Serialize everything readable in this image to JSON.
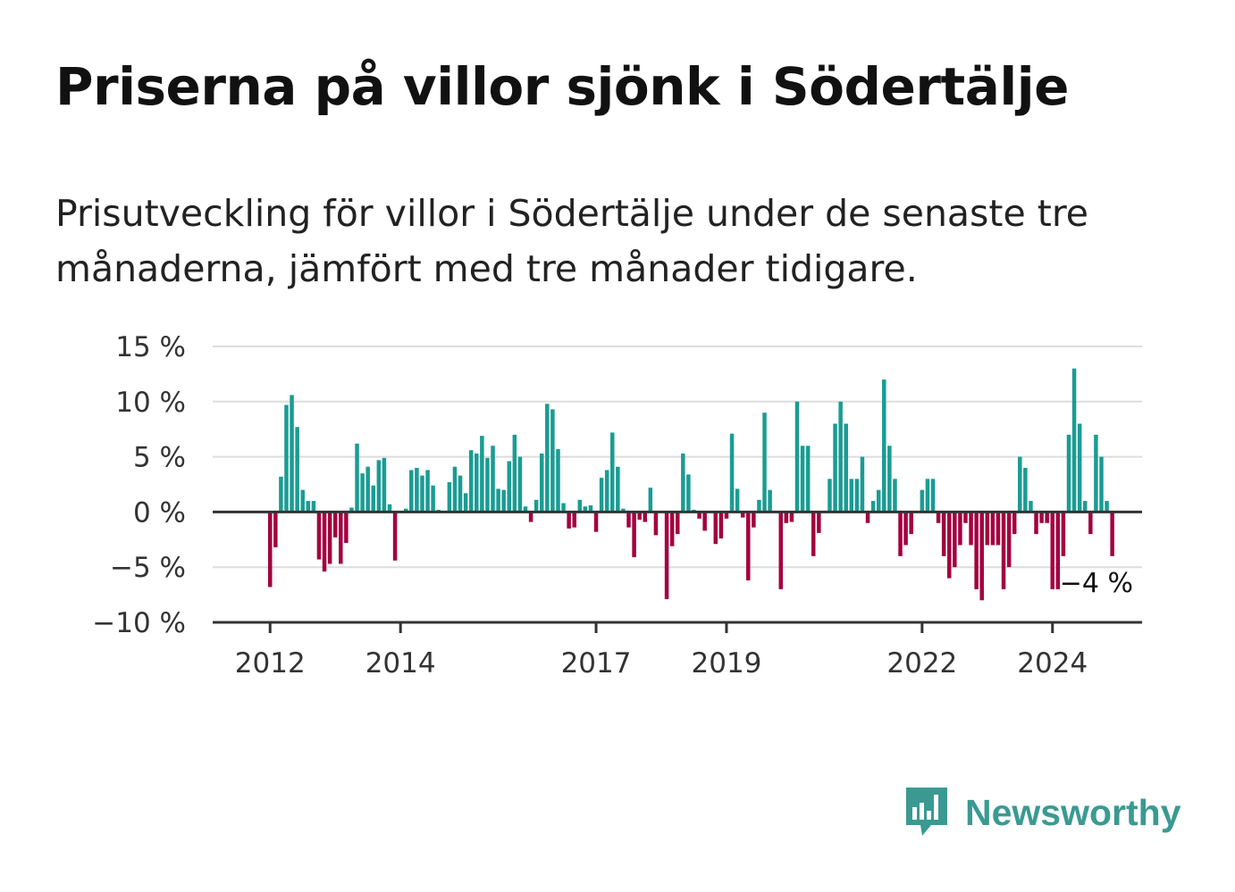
{
  "title": "Priserna på villor sjönk i Södertälje",
  "subtitle": "Prisutveckling för villor i Södertälje under de senaste tre månaderna, jämfört med tre månader tidigare.",
  "brand": {
    "name": "Newsworthy",
    "icon": "newsworthy-logo-icon"
  },
  "colors": {
    "positive": "#1a9c93",
    "negative": "#a3003f",
    "grid": "#dddddd",
    "axis": "#333333",
    "brand": "#3a9a92"
  },
  "chart_data": {
    "type": "bar",
    "title": "",
    "xlabel": "",
    "ylabel": "",
    "ylim": [
      -10,
      15
    ],
    "y_ticks": [
      {
        "value": 15,
        "label": "15 %"
      },
      {
        "value": 10,
        "label": "10 %"
      },
      {
        "value": 5,
        "label": "5 %"
      },
      {
        "value": 0,
        "label": "0 %"
      },
      {
        "value": -5,
        "label": "−5 %"
      },
      {
        "value": -10,
        "label": "−10 %"
      }
    ],
    "x_ticks": [
      {
        "value": "2012-01",
        "label": "2012"
      },
      {
        "value": "2014-01",
        "label": "2014"
      },
      {
        "value": "2017-01",
        "label": "2017"
      },
      {
        "value": "2019-01",
        "label": "2019"
      },
      {
        "value": "2022-01",
        "label": "2022"
      },
      {
        "value": "2024-01",
        "label": "2024"
      }
    ],
    "start_month": "2011-10",
    "last_value_label": "−4 %",
    "grid": true,
    "legend": "none",
    "values": [
      0,
      0,
      0,
      -6.8,
      -3.2,
      3.2,
      9.7,
      10.6,
      7.7,
      2.0,
      1.0,
      1.0,
      -4.3,
      -5.4,
      -4.7,
      -2.3,
      -4.7,
      -2.8,
      0.4,
      6.2,
      3.5,
      4.1,
      2.4,
      4.7,
      4.9,
      0.7,
      -4.4,
      0,
      0.3,
      3.8,
      4.0,
      3.3,
      3.8,
      2.4,
      0.2,
      0,
      2.7,
      4.1,
      3.3,
      1.7,
      5.6,
      5.3,
      6.9,
      4.9,
      6.0,
      2.1,
      2.0,
      4.6,
      7.0,
      5.0,
      0.5,
      -0.9,
      1.1,
      5.3,
      9.8,
      9.3,
      5.7,
      0.8,
      -1.5,
      -1.4,
      1.1,
      0.5,
      0.6,
      -1.8,
      3.1,
      3.8,
      7.2,
      4.1,
      0.3,
      -1.4,
      -4.1,
      -0.7,
      -0.9,
      2.2,
      -2.1,
      0,
      -7.9,
      -3.1,
      -2.0,
      5.3,
      3.4,
      0.2,
      -0.6,
      -1.7,
      0,
      -2.9,
      -2.4,
      -0.6,
      7.1,
      2.1,
      -0.5,
      -6.2,
      -1.4,
      1.1,
      9.0,
      2.0,
      0,
      -7.0,
      -1.0,
      -0.9,
      10.0,
      6.0,
      6.0,
      -4.0,
      -1.9,
      0,
      3.0,
      8.0,
      10.0,
      8.0,
      3.0,
      3.0,
      5.0,
      -1.0,
      1.0,
      2.0,
      12.0,
      6.0,
      3.0,
      -4.0,
      -3.0,
      -2.0,
      0,
      2.0,
      3.0,
      3.0,
      -1.0,
      -4.0,
      -6.0,
      -5.0,
      -3.0,
      -1.0,
      -3.0,
      -7.0,
      -8.0,
      -3.0,
      -3.0,
      -3.0,
      -7.0,
      -5.0,
      -2.0,
      5.0,
      4.0,
      1.0,
      -2.0,
      -1.0,
      -1.0,
      -7.0,
      -7.0,
      -4.0,
      7.0,
      13.0,
      8.0,
      1.0,
      -2.0,
      7.0,
      5.0,
      1.0,
      -4.0
    ]
  }
}
